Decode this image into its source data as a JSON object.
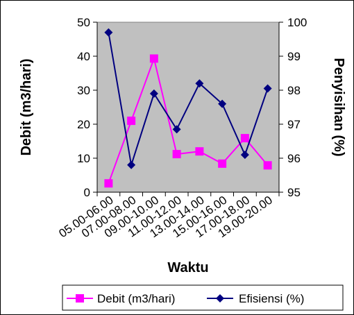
{
  "chart_data": {
    "type": "line",
    "categories": [
      "05.00-06.00",
      "07.00-08.00",
      "09.00-10.00",
      "11.00-12.00",
      "13.00-14.00",
      "15.00-16.00",
      "17.00-18.00",
      "19.00-20.00"
    ],
    "x_tick_labels": [
      "05.00-06.00",
      "07.00-08.00",
      "09.00-10.00",
      "11.00-12.00",
      "13.00-14.00",
      "15.00-16.00",
      "17.00-18.00",
      "19.00-20.00"
    ],
    "series": [
      {
        "name": "Debit (m3/hari)",
        "axis": "left",
        "color": "#ff00ff",
        "marker": "square",
        "values": [
          2.6,
          21,
          39.3,
          11.2,
          12,
          8.4,
          15.9,
          7.9
        ]
      },
      {
        "name": "Efisiensi (%)",
        "axis": "right",
        "color": "#000080",
        "marker": "diamond",
        "values": [
          99.7,
          95.8,
          97.9,
          96.85,
          98.2,
          97.6,
          96.1,
          98.05
        ]
      }
    ],
    "xlabel": "Waktu",
    "ylabel": "Debit (m3/hari)",
    "y2label": "Penyisihan (%)",
    "ylim": [
      0,
      50
    ],
    "y2lim": [
      95,
      100
    ],
    "yticks": [
      0,
      10,
      20,
      30,
      40,
      50
    ],
    "y2ticks": [
      95,
      96,
      97,
      98,
      99,
      100
    ],
    "plot_background": "#c0c0c0",
    "legend_position": "bottom",
    "grid": false
  }
}
